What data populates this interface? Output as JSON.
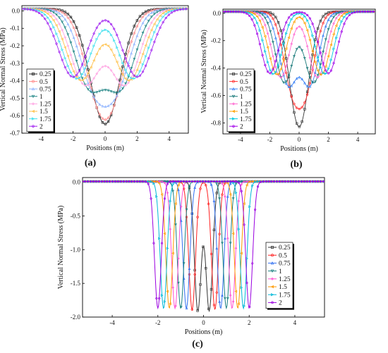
{
  "chart_data": [
    {
      "type": "line",
      "panel_label": "(a)",
      "xlabel": "Positions (m)",
      "ylabel": "Vertical Normal Stress (MPa)",
      "xlim": [
        -5.2,
        5.2
      ],
      "ylim": [
        -0.7,
        0.03
      ],
      "xticks": [
        "-4",
        "-2",
        "0",
        "2",
        "4"
      ],
      "xtick_values": [
        -4,
        -2,
        0,
        2,
        4
      ],
      "yticks": [
        "0.0",
        "-0.1",
        "-0.2",
        "-0.3",
        "-0.4",
        "-0.5",
        "-0.6",
        "-0.7"
      ],
      "ytick_values": [
        0,
        -0.1,
        -0.2,
        -0.3,
        -0.4,
        -0.5,
        -0.6,
        -0.7
      ],
      "legend_position": "bottom-left",
      "series": [
        {
          "name": "0.25",
          "color": "#222222",
          "marker": "square",
          "spacing": 0.25,
          "peak": 0.66,
          "width": 0.9
        },
        {
          "name": "0.5",
          "color": "#ff8c8c",
          "marker": "circle",
          "spacing": 0.5,
          "peak": 0.635,
          "width": 0.9
        },
        {
          "name": "0.75",
          "color": "#8fb4ff",
          "marker": "triangle",
          "spacing": 0.75,
          "peak": 0.56,
          "width": 0.9
        },
        {
          "name": "1",
          "color": "#208585",
          "marker": "down-triangle",
          "spacing": 1.0,
          "peak": 0.48,
          "width": 0.9
        },
        {
          "name": "1.25",
          "color": "#ffa6e3",
          "marker": "diamond",
          "spacing": 1.25,
          "peak": 0.44,
          "width": 0.9
        },
        {
          "name": "1.5",
          "color": "#ffc24d",
          "marker": "left-triangle",
          "spacing": 1.5,
          "peak": 0.41,
          "width": 0.9
        },
        {
          "name": "1.75",
          "color": "#40e0ef",
          "marker": "right-triangle",
          "spacing": 1.75,
          "peak": 0.4,
          "width": 0.9
        },
        {
          "name": "2",
          "color": "#a020f0",
          "marker": "hexagon",
          "spacing": 2.0,
          "peak": 0.39,
          "width": 0.9
        }
      ]
    },
    {
      "type": "line",
      "panel_label": "(b)",
      "xlabel": "Positions (m)",
      "ylabel": "Vertical Normal Stress (MPa)",
      "xlim": [
        -5.2,
        5.2
      ],
      "ylim": [
        -0.88,
        0.03
      ],
      "xticks": [
        "-4",
        "-2",
        "0",
        "2",
        "4"
      ],
      "xtick_values": [
        -4,
        -2,
        0,
        2,
        4
      ],
      "yticks": [
        "0.0",
        "-0.2",
        "-0.4",
        "-0.6",
        "-0.8"
      ],
      "ytick_values": [
        0,
        -0.2,
        -0.4,
        -0.6,
        -0.8
      ],
      "legend_position": "bottom-left",
      "series": [
        {
          "name": "0.25",
          "color": "#333333",
          "marker": "square",
          "spacing": 0.25,
          "peak": 0.84,
          "width": 0.6
        },
        {
          "name": "0.5",
          "color": "#ff3030",
          "marker": "circle",
          "spacing": 0.5,
          "peak": 0.71,
          "width": 0.6
        },
        {
          "name": "0.75",
          "color": "#3b82f6",
          "marker": "triangle",
          "spacing": 0.75,
          "peak": 0.55,
          "width": 0.6
        },
        {
          "name": "1",
          "color": "#1a7a7a",
          "marker": "down-triangle",
          "spacing": 1.0,
          "peak": 0.52,
          "width": 0.6
        },
        {
          "name": "1.25",
          "color": "#ff69d0",
          "marker": "diamond",
          "spacing": 1.25,
          "peak": 0.48,
          "width": 0.6
        },
        {
          "name": "1.5",
          "color": "#ffa000",
          "marker": "left-triangle",
          "spacing": 1.5,
          "peak": 0.46,
          "width": 0.6
        },
        {
          "name": "1.75",
          "color": "#00c8e0",
          "marker": "right-triangle",
          "spacing": 1.75,
          "peak": 0.455,
          "width": 0.6
        },
        {
          "name": "2",
          "color": "#a000e8",
          "marker": "hexagon",
          "spacing": 2.0,
          "peak": 0.45,
          "width": 0.6
        }
      ]
    },
    {
      "type": "line",
      "panel_label": "(c)",
      "xlabel": "Positions (m)",
      "ylabel": "Vertical Normal Stress (MPa)",
      "xlim": [
        -5.3,
        5.3
      ],
      "ylim": [
        -2.0,
        0.07
      ],
      "xticks": [
        "-4",
        "-2",
        "0",
        "2",
        "4"
      ],
      "xtick_values": [
        -4,
        -2,
        0,
        2,
        4
      ],
      "yticks": [
        "0.0",
        "-0.5",
        "-1.0",
        "-1.5",
        "-2.0"
      ],
      "ytick_values": [
        0,
        -0.5,
        -1.0,
        -1.5,
        -2.0
      ],
      "legend_position": "bottom-right",
      "series": [
        {
          "name": "0.25",
          "color": "#333333",
          "marker": "square",
          "spacing": 0.25,
          "peak": 1.92,
          "width": 0.15
        },
        {
          "name": "0.5",
          "color": "#ff2020",
          "marker": "circle",
          "spacing": 0.5,
          "peak": 1.9,
          "width": 0.15
        },
        {
          "name": "0.75",
          "color": "#2f6ff0",
          "marker": "triangle",
          "spacing": 0.75,
          "peak": 1.88,
          "width": 0.15
        },
        {
          "name": "1",
          "color": "#1a8080",
          "marker": "down-triangle",
          "spacing": 1.0,
          "peak": 1.88,
          "width": 0.15
        },
        {
          "name": "1.25",
          "color": "#ff50d0",
          "marker": "diamond",
          "spacing": 1.25,
          "peak": 1.88,
          "width": 0.15
        },
        {
          "name": "1.5",
          "color": "#ff9900",
          "marker": "left-triangle",
          "spacing": 1.5,
          "peak": 1.88,
          "width": 0.15
        },
        {
          "name": "1.75",
          "color": "#00b8d8",
          "marker": "right-triangle",
          "spacing": 1.75,
          "peak": 1.88,
          "width": 0.15
        },
        {
          "name": "2",
          "color": "#9a00e0",
          "marker": "hexagon",
          "spacing": 2.0,
          "peak": 1.88,
          "width": 0.15
        }
      ]
    }
  ]
}
